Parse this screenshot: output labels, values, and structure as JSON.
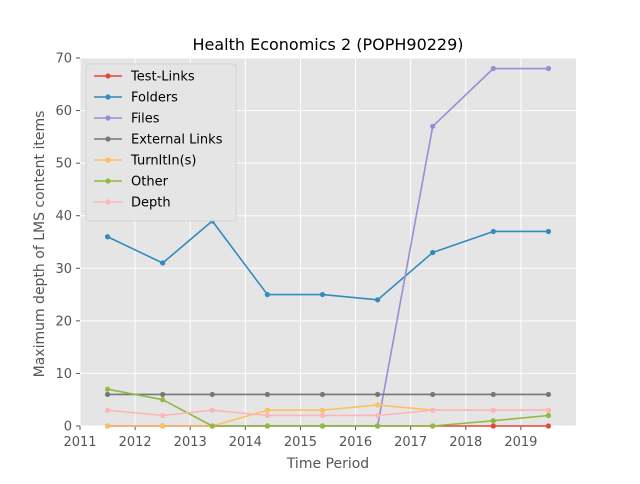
{
  "chart_data": {
    "type": "line",
    "title": "Health Economics 2 (POPH90229)",
    "xlabel": "Time Period",
    "ylabel": "Maximum depth of LMS content items",
    "xlim": [
      2011,
      2020
    ],
    "ylim": [
      0,
      70
    ],
    "x_ticks": [
      2011,
      2012,
      2013,
      2014,
      2015,
      2016,
      2017,
      2018,
      2019
    ],
    "y_ticks": [
      0,
      10,
      20,
      30,
      40,
      50,
      60,
      70
    ],
    "grid": true,
    "legend_position": "upper-left",
    "x": [
      2011.5,
      2012.5,
      2013.4,
      2014.4,
      2015.4,
      2016.4,
      2017.4,
      2018.5,
      2019.5
    ],
    "series": [
      {
        "name": "Test-Links",
        "color": "#e24a33",
        "values": [
          0,
          0,
          0,
          0,
          0,
          0,
          0,
          0,
          0
        ]
      },
      {
        "name": "Folders",
        "color": "#348abd",
        "values": [
          36,
          31,
          39,
          25,
          25,
          24,
          33,
          37,
          37
        ]
      },
      {
        "name": "Files",
        "color": "#988ed5",
        "values": [
          0,
          0,
          0,
          0,
          0,
          0,
          57,
          68,
          68
        ]
      },
      {
        "name": "External Links",
        "color": "#777777",
        "values": [
          6,
          6,
          6,
          6,
          6,
          6,
          6,
          6,
          6
        ]
      },
      {
        "name": "TurnItIn(s)",
        "color": "#fbc15e",
        "values": [
          0,
          0,
          0,
          3,
          3,
          4,
          3,
          3,
          3
        ]
      },
      {
        "name": "Other",
        "color": "#8eba42",
        "values": [
          7,
          5,
          0,
          0,
          0,
          0,
          0,
          1,
          2
        ]
      },
      {
        "name": "Depth",
        "color": "#ffb5b8",
        "values": [
          3,
          2,
          3,
          2,
          2,
          2,
          3,
          3,
          3
        ]
      }
    ]
  }
}
